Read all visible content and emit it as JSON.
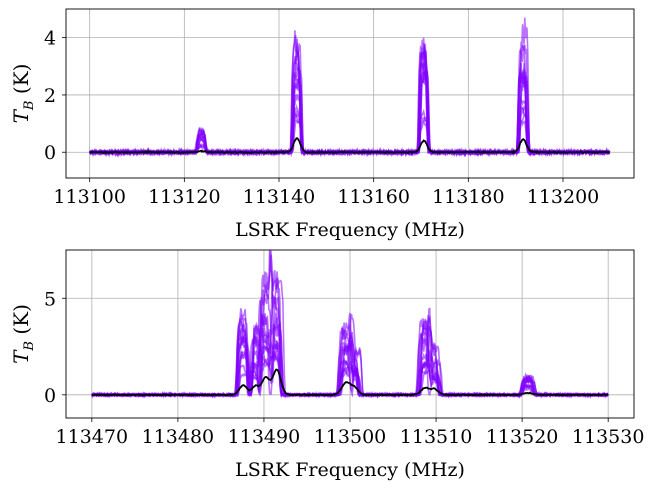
{
  "chart_data": [
    {
      "type": "line",
      "xlabel": "LSRK Frequency (MHz)",
      "ylabel": {
        "main": "T",
        "sub": "B",
        "unit": " (K)"
      },
      "xlim": [
        113095,
        113215
      ],
      "ylim": [
        -0.9,
        5.0
      ],
      "xticks": [
        113100,
        113120,
        113140,
        113160,
        113180,
        113200
      ],
      "yticks": [
        0,
        2,
        4
      ],
      "grid": true,
      "x_range": [
        113100,
        113210
      ],
      "sample_color": "#8000ff",
      "mean_color": "#000000",
      "n_samples": 14,
      "noise": 0.07,
      "lines": [
        {
          "center": 113123.6,
          "width": 0.9,
          "peak": 0.95,
          "mean": 0.04
        },
        {
          "center": 113143.8,
          "width": 0.9,
          "peak": 4.5,
          "mean": 0.5
        },
        {
          "center": 113170.6,
          "width": 0.9,
          "peak": 4.1,
          "mean": 0.4
        },
        {
          "center": 113191.6,
          "width": 0.9,
          "peak": 4.7,
          "mean": 0.45
        }
      ]
    },
    {
      "type": "line",
      "xlabel": "LSRK Frequency (MHz)",
      "ylabel": {
        "main": "T",
        "sub": "B",
        "unit": " (K)"
      },
      "xlim": [
        113467,
        113533
      ],
      "ylim": [
        -1.2,
        7.5
      ],
      "xticks": [
        113470,
        113480,
        113490,
        113500,
        113510,
        113520,
        113530
      ],
      "yticks": [
        0,
        5
      ],
      "grid": true,
      "x_range": [
        113470,
        113530
      ],
      "sample_color": "#8000ff",
      "mean_color": "#000000",
      "n_samples": 14,
      "noise": 0.07,
      "lines": [
        {
          "center": 113487.6,
          "width": 0.6,
          "peak": 4.8,
          "mean": 0.5
        },
        {
          "center": 113489.0,
          "width": 0.5,
          "peak": 3.8,
          "mean": 0.45
        },
        {
          "center": 113490.2,
          "width": 0.6,
          "peak": 6.6,
          "mean": 0.9
        },
        {
          "center": 113491.5,
          "width": 0.6,
          "peak": 7.0,
          "mean": 1.3
        },
        {
          "center": 113499.6,
          "width": 0.7,
          "peak": 4.1,
          "mean": 0.65
        },
        {
          "center": 113500.6,
          "width": 0.5,
          "peak": 2.5,
          "mean": 0.3
        },
        {
          "center": 113508.7,
          "width": 0.6,
          "peak": 4.3,
          "mean": 0.35
        },
        {
          "center": 113509.8,
          "width": 0.6,
          "peak": 2.8,
          "mean": 0.3
        },
        {
          "center": 113520.7,
          "width": 0.7,
          "peak": 1.1,
          "mean": 0.1
        }
      ]
    }
  ]
}
